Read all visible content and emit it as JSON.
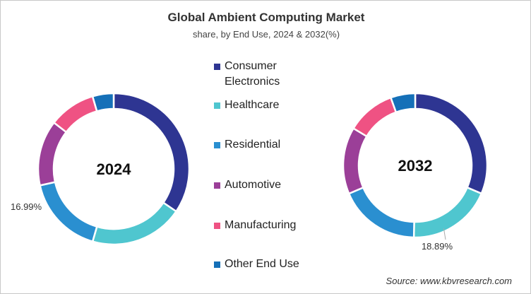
{
  "chart_data": {
    "type": "pie",
    "title": "Global Ambient Computing Market",
    "subtitle": "share, by End Use, 2024 & 2032(%)",
    "categories": [
      "Consumer Electronics",
      "Healthcare",
      "Residential",
      "Automotive",
      "Manufacturing",
      "Other End Use"
    ],
    "colors": [
      "#2e3592",
      "#4fc6cf",
      "#2a8fd0",
      "#9b3f98",
      "#ef5283",
      "#1570b8"
    ],
    "legend_position": "center",
    "charts": [
      {
        "year_label": "2024",
        "values": [
          34.5,
          20.0,
          16.99,
          14.0,
          10.0,
          4.51
        ],
        "data_label": "16.99%",
        "labeled_category": "Residential"
      },
      {
        "year_label": "2032",
        "values": [
          31.4,
          18.89,
          18.3,
          15.0,
          10.9,
          5.51
        ],
        "data_label": "18.89%",
        "labeled_category": "Healthcare"
      }
    ],
    "source": "Source: www.kbvresearch.com"
  }
}
